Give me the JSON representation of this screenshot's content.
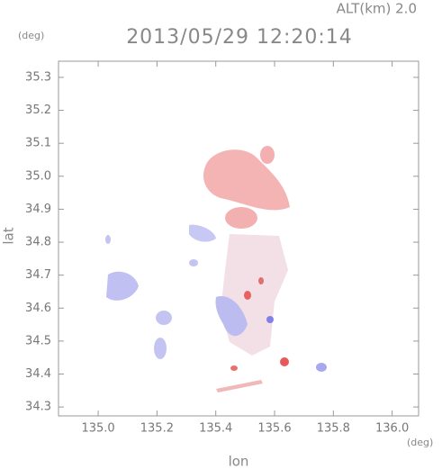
{
  "chart_data": {
    "type": "map",
    "title": "2013/05/29 12:20:14",
    "altitude_label": "ALT(km)  2.0",
    "y_unit": "(deg)",
    "x_unit": "(deg)",
    "x_label": "lon",
    "y_label": "lat",
    "xlim": [
      134.865,
      136.09
    ],
    "ylim": [
      34.273,
      35.349
    ],
    "xticks": [
      {
        "value": 135.0,
        "label": "135.0"
      },
      {
        "value": 135.2,
        "label": "135.2"
      },
      {
        "value": 135.4,
        "label": "135.4"
      },
      {
        "value": 135.6,
        "label": "135.6"
      },
      {
        "value": 135.8,
        "label": "135.8"
      },
      {
        "value": 136.0,
        "label": "136.0"
      }
    ],
    "yticks": [
      {
        "value": 34.3,
        "label": "34.3"
      },
      {
        "value": 34.4,
        "label": "34.4"
      },
      {
        "value": 34.5,
        "label": "34.5"
      },
      {
        "value": 34.6,
        "label": "34.6"
      },
      {
        "value": 34.7,
        "label": "34.7"
      },
      {
        "value": 34.8,
        "label": "34.8"
      },
      {
        "value": 34.9,
        "label": "34.9"
      },
      {
        "value": 35.0,
        "label": "35.0"
      },
      {
        "value": 35.1,
        "label": "35.1"
      },
      {
        "value": 35.2,
        "label": "35.2"
      },
      {
        "value": 35.3,
        "label": "35.3"
      }
    ]
  }
}
